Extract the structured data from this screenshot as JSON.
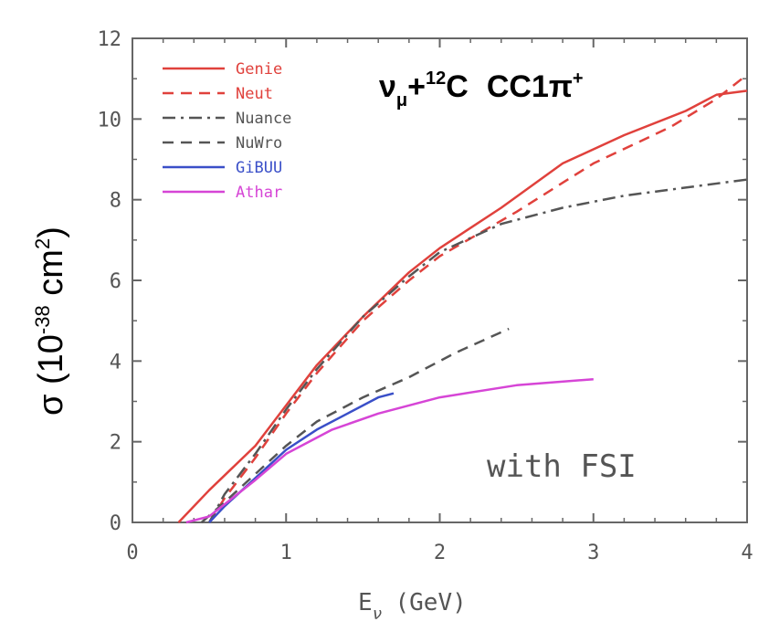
{
  "chart_data": {
    "type": "line",
    "title": {
      "base": "ν",
      "sub": "μ",
      "plus": "+",
      "sup_mass": "12",
      "element": "C",
      "channel": "CC1π",
      "sup_charge": "+"
    },
    "xlabel": {
      "base": "E",
      "sub": "ν",
      "unit": "(GeV)"
    },
    "ylabel": {
      "prefix": "σ (10",
      "sup_exp": "-38",
      "mid": " cm",
      "sup_sq": "2",
      "suffix": ")"
    },
    "xlim": [
      0,
      4
    ],
    "ylim": [
      0,
      12
    ],
    "xticks": [
      0,
      1,
      2,
      3,
      4
    ],
    "yticks": [
      0,
      2,
      4,
      6,
      8,
      10,
      12
    ],
    "grid": false,
    "legend_position": "top-left",
    "annotation": "with FSI",
    "series": [
      {
        "name": "Genie",
        "color": "#e0413c",
        "dash": "solid",
        "x": [
          0.3,
          0.5,
          0.8,
          1.0,
          1.2,
          1.5,
          1.8,
          2.0,
          2.4,
          2.8,
          3.2,
          3.6,
          3.8,
          4.0
        ],
        "y": [
          0.0,
          0.8,
          1.9,
          2.9,
          3.9,
          5.1,
          6.2,
          6.8,
          7.8,
          8.9,
          9.6,
          10.2,
          10.6,
          10.7
        ]
      },
      {
        "name": "Neut",
        "color": "#e0413c",
        "dash": "dashed",
        "x": [
          0.5,
          0.6,
          0.8,
          1.0,
          1.2,
          1.5,
          1.8,
          2.0,
          2.5,
          3.0,
          3.5,
          3.8,
          4.0
        ],
        "y": [
          0.0,
          0.6,
          1.6,
          2.7,
          3.7,
          5.0,
          6.0,
          6.6,
          7.7,
          8.9,
          9.8,
          10.5,
          11.1
        ]
      },
      {
        "name": "Nuance",
        "color": "#555555",
        "dash": "dashdot",
        "x": [
          0.5,
          0.6,
          0.8,
          1.0,
          1.2,
          1.5,
          1.8,
          2.0,
          2.4,
          2.8,
          3.2,
          3.6,
          4.0
        ],
        "y": [
          0.0,
          0.7,
          1.7,
          2.8,
          3.8,
          5.1,
          6.1,
          6.7,
          7.4,
          7.8,
          8.1,
          8.3,
          8.5
        ]
      },
      {
        "name": "NuWro",
        "color": "#555555",
        "dash": "dashed",
        "x": [
          0.45,
          0.6,
          0.8,
          1.0,
          1.2,
          1.5,
          1.8,
          2.1,
          2.45
        ],
        "y": [
          0.0,
          0.5,
          1.2,
          1.9,
          2.5,
          3.1,
          3.6,
          4.2,
          4.8
        ]
      },
      {
        "name": "GiBUU",
        "color": "#3a4fc8",
        "dash": "solid",
        "x": [
          0.5,
          0.6,
          0.8,
          1.0,
          1.2,
          1.4,
          1.6,
          1.7
        ],
        "y": [
          0.0,
          0.4,
          1.1,
          1.8,
          2.3,
          2.7,
          3.1,
          3.2
        ]
      },
      {
        "name": "Athar",
        "color": "#d645d6",
        "dash": "solid",
        "x": [
          0.35,
          0.5,
          0.8,
          1.0,
          1.3,
          1.6,
          2.0,
          2.5,
          3.0
        ],
        "y": [
          0.0,
          0.15,
          1.05,
          1.7,
          2.3,
          2.7,
          3.1,
          3.4,
          3.55
        ]
      }
    ]
  }
}
